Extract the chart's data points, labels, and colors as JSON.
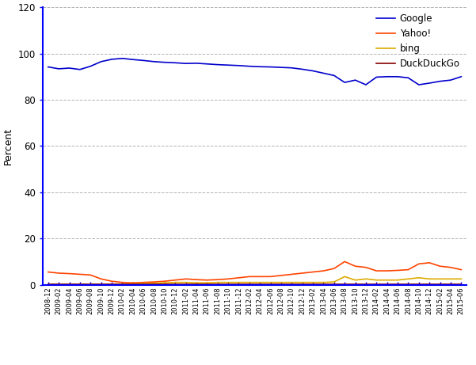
{
  "title": "",
  "ylabel": "Percent",
  "ylim": [
    0,
    120
  ],
  "yticks": [
    0,
    20,
    40,
    60,
    80,
    100,
    120
  ],
  "background_color": "#ffffff",
  "grid_color": "#aaaaaa",
  "legend_labels": [
    "Google",
    "Yahoo!",
    "bing",
    "DuckDuckGo"
  ],
  "line_colors": [
    "#0000cc",
    "#ff4400",
    "#ddaa00",
    "#880000"
  ],
  "axis_color": "#0000ff",
  "dates": [
    "2008-12",
    "2009-02",
    "2009-04",
    "2009-06",
    "2009-08",
    "2009-10",
    "2009-12",
    "2010-02",
    "2010-04",
    "2010-06",
    "2010-08",
    "2010-10",
    "2010-12",
    "2011-02",
    "2011-04",
    "2011-06",
    "2011-08",
    "2011-10",
    "2011-12",
    "2012-02",
    "2012-04",
    "2012-06",
    "2012-08",
    "2012-10",
    "2012-12",
    "2013-02",
    "2013-04",
    "2013-06",
    "2013-08",
    "2013-10",
    "2013-12",
    "2014-02",
    "2014-04",
    "2014-06",
    "2014-08",
    "2014-10",
    "2014-12",
    "2015-02",
    "2015-04",
    "2015-06"
  ],
  "google": [
    94.2,
    93.4,
    93.7,
    93.1,
    94.5,
    96.5,
    97.5,
    97.9,
    97.4,
    97.0,
    96.5,
    96.2,
    96.0,
    95.7,
    95.8,
    95.5,
    95.2,
    95.0,
    94.8,
    94.5,
    94.3,
    94.2,
    94.0,
    93.8,
    93.2,
    92.5,
    91.5,
    90.5,
    87.5,
    88.5,
    86.5,
    89.8,
    90.0,
    90.0,
    89.5,
    86.5,
    87.2,
    88.0,
    88.5,
    90.0
  ],
  "yahoo": [
    5.5,
    5.0,
    4.8,
    4.5,
    4.2,
    2.5,
    1.5,
    1.0,
    0.8,
    1.0,
    1.2,
    1.5,
    2.0,
    2.5,
    2.2,
    2.0,
    2.2,
    2.5,
    3.0,
    3.5,
    3.5,
    3.5,
    4.0,
    4.5,
    5.0,
    5.5,
    6.0,
    7.0,
    10.0,
    8.0,
    7.5,
    6.0,
    6.0,
    6.2,
    6.5,
    9.0,
    9.5,
    8.0,
    7.5,
    6.5
  ],
  "bing": [
    0.2,
    0.2,
    0.2,
    0.2,
    0.2,
    0.2,
    0.2,
    0.3,
    0.4,
    0.5,
    0.6,
    0.8,
    1.0,
    1.0,
    0.8,
    0.8,
    1.0,
    1.0,
    1.0,
    1.0,
    1.0,
    1.0,
    1.0,
    1.0,
    1.0,
    1.0,
    1.0,
    1.2,
    3.5,
    2.0,
    2.5,
    2.0,
    2.0,
    2.0,
    2.5,
    3.0,
    2.5,
    2.5,
    2.5,
    2.5
  ],
  "duckduckgo": [
    0.1,
    0.1,
    0.1,
    0.1,
    0.1,
    0.1,
    0.1,
    0.1,
    0.1,
    0.1,
    0.1,
    0.1,
    0.1,
    0.1,
    0.1,
    0.1,
    0.1,
    0.1,
    0.1,
    0.1,
    0.1,
    0.1,
    0.1,
    0.1,
    0.1,
    0.1,
    0.1,
    0.1,
    0.1,
    0.1,
    0.1,
    0.1,
    0.1,
    0.1,
    0.1,
    0.1,
    0.1,
    0.1,
    0.1,
    0.1
  ]
}
